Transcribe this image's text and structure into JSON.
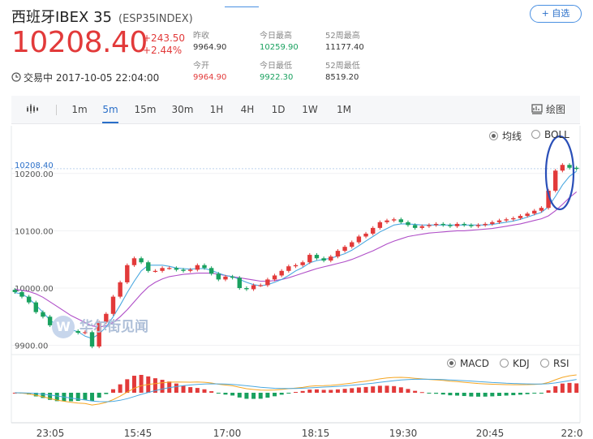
{
  "header": {
    "name": "西班牙IBEX 35",
    "code": "(ESP35INDEX)",
    "watch_label": "+ 自选",
    "price": "10208.40",
    "change": "+243.50",
    "change_pct": "+2.44%",
    "status": "交易中 2017-10-05 22:04:00",
    "stats": [
      {
        "label": "昨收",
        "value": "9964.90"
      },
      {
        "label": "今日最高",
        "value": "10259.90"
      },
      {
        "label": "52周最高",
        "value": "11177.40"
      },
      {
        "label": "今开",
        "value": "9964.90"
      },
      {
        "label": "今日最低",
        "value": "9922.30"
      },
      {
        "label": "52周最低",
        "value": "8519.20"
      }
    ]
  },
  "toolbar": {
    "periods": [
      "1m",
      "5m",
      "15m",
      "30m",
      "1H",
      "4H",
      "1D",
      "1W",
      "1M"
    ],
    "active": "5m",
    "draw_label": "绘图"
  },
  "overlay_options": {
    "ma_label": "均线",
    "boll_label": "BOLL"
  },
  "indicator_options": {
    "macd_label": "MACD",
    "kdj_label": "KDJ",
    "rsi_label": "RSI"
  },
  "watermark": "华尔街见闻",
  "colors": {
    "up": "#e23a3a",
    "down": "#19a15f",
    "accent": "#2a6fc9"
  },
  "chart_data": {
    "type": "candlestick",
    "current_price_label": "10208.40",
    "y_ticks": [
      "10200.00",
      "10100.00",
      "10000.00",
      "9900.00"
    ],
    "y_tick_values": [
      10200,
      10100,
      10000,
      9900
    ],
    "ylim": [
      9882,
      10265
    ],
    "x_ticks": [
      "23:05",
      "15:45",
      "17:00",
      "18:15",
      "19:30",
      "20:45",
      "22:0"
    ],
    "close": [
      9993,
      9985,
      9975,
      9958,
      9950,
      9935,
      9928,
      9930,
      9925,
      9922,
      9923,
      9898,
      9940,
      9955,
      9985,
      10010,
      10040,
      10052,
      10045,
      10030,
      10030,
      10035,
      10035,
      10032,
      10030,
      10032,
      10040,
      10035,
      10025,
      10015,
      10020,
      10018,
      10000,
      9998,
      10005,
      10005,
      10015,
      10022,
      10030,
      10038,
      10040,
      10045,
      10058,
      10052,
      10048,
      10055,
      10065,
      10072,
      10080,
      10090,
      10095,
      10105,
      10115,
      10118,
      10120,
      10115,
      10110,
      10105,
      10108,
      10110,
      10112,
      10110,
      10108,
      10112,
      10110,
      10108,
      10110,
      10112,
      10115,
      10118,
      10120,
      10122,
      10126,
      10130,
      10135,
      10140,
      10170,
      10205,
      10215,
      10210,
      10208
    ],
    "ma_fast": [
      9992,
      9990,
      9982,
      9970,
      9958,
      9944,
      9935,
      9930,
      9927,
      9924,
      9916,
      9912,
      9920,
      9932,
      9950,
      9970,
      9992,
      10012,
      10030,
      10040,
      10040,
      10040,
      10038,
      10035,
      10034,
      10033,
      10034,
      10034,
      10031,
      10026,
      10022,
      10020,
      10015,
      10010,
      10006,
      10004,
      10006,
      10010,
      10015,
      10022,
      10030,
      10036,
      10044,
      10048,
      10050,
      10052,
      10056,
      10060,
      10066,
      10074,
      10082,
      10090,
      10098,
      10104,
      10110,
      10112,
      10112,
      10111,
      10110,
      10110,
      10110,
      10110,
      10110,
      10110,
      10110,
      10110,
      10110,
      10110,
      10111,
      10113,
      10115,
      10117,
      10120,
      10124,
      10128,
      10132,
      10142,
      10160,
      10180,
      10195,
      10204
    ],
    "ma_slow": [
      9998,
      9996,
      9994,
      9990,
      9984,
      9976,
      9968,
      9960,
      9952,
      9946,
      9940,
      9934,
      9932,
      9934,
      9940,
      9950,
      9962,
      9976,
      9990,
      10002,
      10010,
      10016,
      10020,
      10022,
      10024,
      10025,
      10026,
      10026,
      10026,
      10024,
      10022,
      10020,
      10018,
      10016,
      10014,
      10012,
      10012,
      10013,
      10015,
      10018,
      10022,
      10026,
      10030,
      10034,
      10037,
      10040,
      10043,
      10046,
      10050,
      10055,
      10060,
      10065,
      10071,
      10077,
      10082,
      10086,
      10090,
      10092,
      10094,
      10096,
      10097,
      10098,
      10099,
      10100,
      10100,
      10101,
      10102,
      10103,
      10104,
      10106,
      10108,
      10110,
      10112,
      10115,
      10118,
      10121,
      10126,
      10135,
      10146,
      10158,
      10168
    ]
  }
}
